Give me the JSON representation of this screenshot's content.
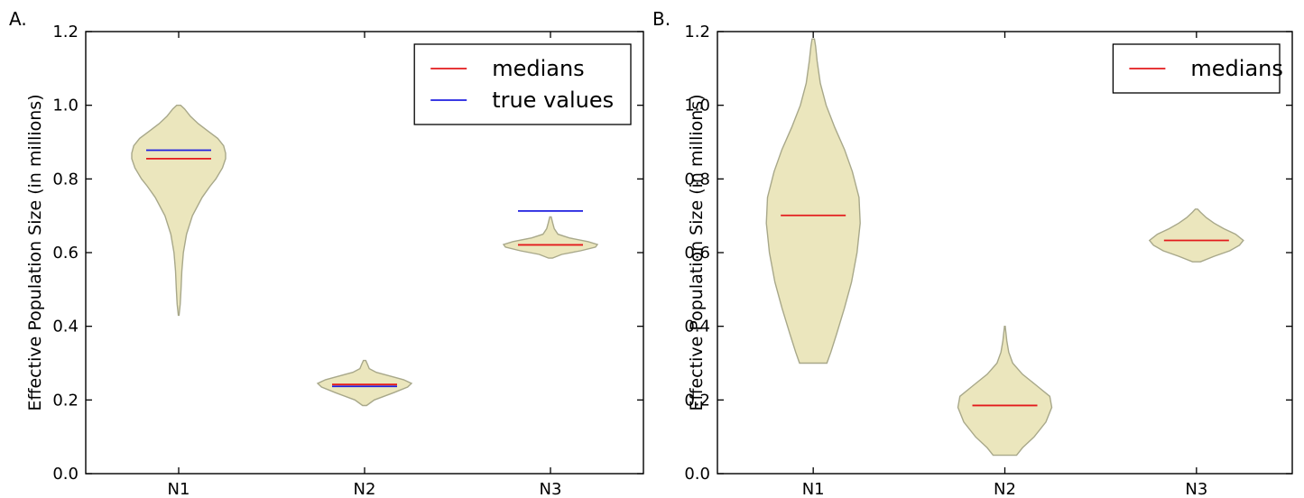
{
  "chart_data": [
    {
      "type": "violin",
      "panel_label": "A.",
      "ylabel": "Effective Population Size (in millions)",
      "ylim": [
        0,
        1.2
      ],
      "yticks": [
        "0.0",
        "0.2",
        "0.4",
        "0.6",
        "0.8",
        "1.0",
        "1.2"
      ],
      "categories": [
        "N1",
        "N2",
        "N3"
      ],
      "legend": {
        "placement": "top-right",
        "entries": [
          {
            "label": "medians",
            "color": "#e31a1c"
          },
          {
            "label": "true values",
            "color": "#1f1fe0"
          }
        ]
      },
      "violins": [
        {
          "category": "N1",
          "min": 0.43,
          "max": 1.0,
          "median": 0.855,
          "true_value": 0.878,
          "profile": [
            [
              0.43,
              0.001
            ],
            [
              0.46,
              0.004
            ],
            [
              0.5,
              0.006
            ],
            [
              0.55,
              0.008
            ],
            [
              0.6,
              0.012
            ],
            [
              0.65,
              0.02
            ],
            [
              0.7,
              0.035
            ],
            [
              0.75,
              0.06
            ],
            [
              0.78,
              0.08
            ],
            [
              0.8,
              0.095
            ],
            [
              0.83,
              0.112
            ],
            [
              0.855,
              0.12
            ],
            [
              0.87,
              0.12
            ],
            [
              0.89,
              0.115
            ],
            [
              0.91,
              0.1
            ],
            [
              0.93,
              0.075
            ],
            [
              0.95,
              0.05
            ],
            [
              0.97,
              0.03
            ],
            [
              0.99,
              0.015
            ],
            [
              1.0,
              0.005
            ]
          ]
        },
        {
          "category": "N2",
          "min": 0.185,
          "max": 0.307,
          "median": 0.242,
          "true_value": 0.237,
          "profile": [
            [
              0.185,
              0.005
            ],
            [
              0.2,
              0.025
            ],
            [
              0.22,
              0.075
            ],
            [
              0.235,
              0.11
            ],
            [
              0.245,
              0.12
            ],
            [
              0.255,
              0.1
            ],
            [
              0.265,
              0.065
            ],
            [
              0.275,
              0.03
            ],
            [
              0.285,
              0.012
            ],
            [
              0.295,
              0.008
            ],
            [
              0.307,
              0.003
            ]
          ]
        },
        {
          "category": "N3",
          "min": 0.585,
          "max": 0.697,
          "median": 0.621,
          "true_value": 0.713,
          "profile": [
            [
              0.585,
              0.005
            ],
            [
              0.595,
              0.03
            ],
            [
              0.605,
              0.08
            ],
            [
              0.615,
              0.12
            ],
            [
              0.622,
              0.125
            ],
            [
              0.63,
              0.1
            ],
            [
              0.64,
              0.05
            ],
            [
              0.65,
              0.02
            ],
            [
              0.665,
              0.01
            ],
            [
              0.68,
              0.006
            ],
            [
              0.697,
              0.002
            ]
          ]
        }
      ]
    },
    {
      "type": "violin",
      "panel_label": "B.",
      "ylabel": "Effective Population Size (in millions)",
      "ylim": [
        0,
        1.2
      ],
      "yticks": [
        "0.0",
        "0.2",
        "0.4",
        "0.6",
        "0.8",
        "1.0",
        "1.2"
      ],
      "categories": [
        "N1",
        "N2",
        "N3"
      ],
      "legend": {
        "placement": "top-right",
        "entries": [
          {
            "label": "medians",
            "color": "#e31a1c"
          }
        ]
      },
      "violins": [
        {
          "category": "N1",
          "min": 0.3,
          "max": 1.18,
          "median": 0.701,
          "profile": [
            [
              0.3,
              0.035
            ],
            [
              0.33,
              0.045
            ],
            [
              0.38,
              0.06
            ],
            [
              0.45,
              0.08
            ],
            [
              0.52,
              0.098
            ],
            [
              0.6,
              0.112
            ],
            [
              0.68,
              0.12
            ],
            [
              0.75,
              0.117
            ],
            [
              0.82,
              0.1
            ],
            [
              0.88,
              0.08
            ],
            [
              0.94,
              0.055
            ],
            [
              1.0,
              0.033
            ],
            [
              1.06,
              0.018
            ],
            [
              1.12,
              0.01
            ],
            [
              1.16,
              0.006
            ],
            [
              1.18,
              0.003
            ]
          ]
        },
        {
          "category": "N2",
          "min": 0.05,
          "max": 0.4,
          "median": 0.185,
          "profile": [
            [
              0.05,
              0.03
            ],
            [
              0.07,
              0.045
            ],
            [
              0.1,
              0.075
            ],
            [
              0.14,
              0.105
            ],
            [
              0.18,
              0.12
            ],
            [
              0.21,
              0.115
            ],
            [
              0.24,
              0.08
            ],
            [
              0.27,
              0.045
            ],
            [
              0.3,
              0.02
            ],
            [
              0.33,
              0.01
            ],
            [
              0.36,
              0.005
            ],
            [
              0.4,
              0.001
            ]
          ]
        },
        {
          "category": "N3",
          "min": 0.575,
          "max": 0.718,
          "median": 0.633,
          "profile": [
            [
              0.575,
              0.01
            ],
            [
              0.59,
              0.045
            ],
            [
              0.605,
              0.085
            ],
            [
              0.62,
              0.11
            ],
            [
              0.633,
              0.12
            ],
            [
              0.65,
              0.1
            ],
            [
              0.665,
              0.07
            ],
            [
              0.68,
              0.045
            ],
            [
              0.695,
              0.025
            ],
            [
              0.71,
              0.01
            ],
            [
              0.718,
              0.003
            ]
          ]
        }
      ]
    }
  ]
}
